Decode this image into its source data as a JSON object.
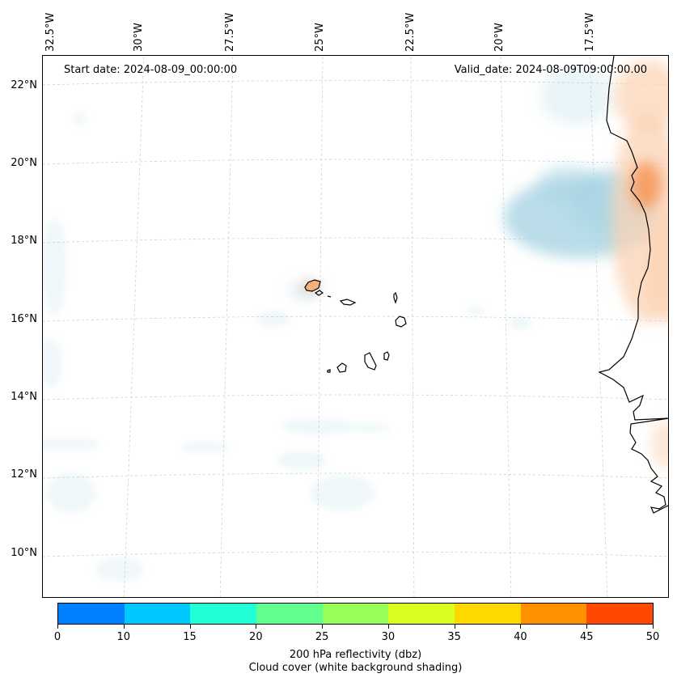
{
  "map": {
    "start_date": "Start date: 2024-08-09_00:00:00",
    "valid_date": "Valid_date: 2024-08-09T09:00:00.00",
    "lon_labels": [
      "32.5°W",
      "30°W",
      "27.5°W",
      "25°W",
      "22.5°W",
      "20°W",
      "17.5°W"
    ],
    "lat_labels": [
      "22°N",
      "20°N",
      "18°N",
      "16°N",
      "14°N",
      "12°N",
      "10°N"
    ],
    "colors": {
      "cloud": "#a9d4e4",
      "reflectivity_low": "#fbd3b4",
      "reflectivity_high": "#f59a5c",
      "coastline": "#000000",
      "gridline": "#cfcfcf"
    }
  },
  "colorbar": {
    "ticks": [
      "0",
      "10",
      "15",
      "20",
      "25",
      "30",
      "35",
      "40",
      "45",
      "50"
    ],
    "colors": [
      "#0080ff",
      "#00c8ff",
      "#20ffd8",
      "#60ff90",
      "#98ff58",
      "#d8ff20",
      "#ffd800",
      "#ff9000",
      "#ff4800"
    ],
    "label": "200 hPa reflectivity (dbz)",
    "sublabel": "Cloud cover (white background shading)"
  }
}
